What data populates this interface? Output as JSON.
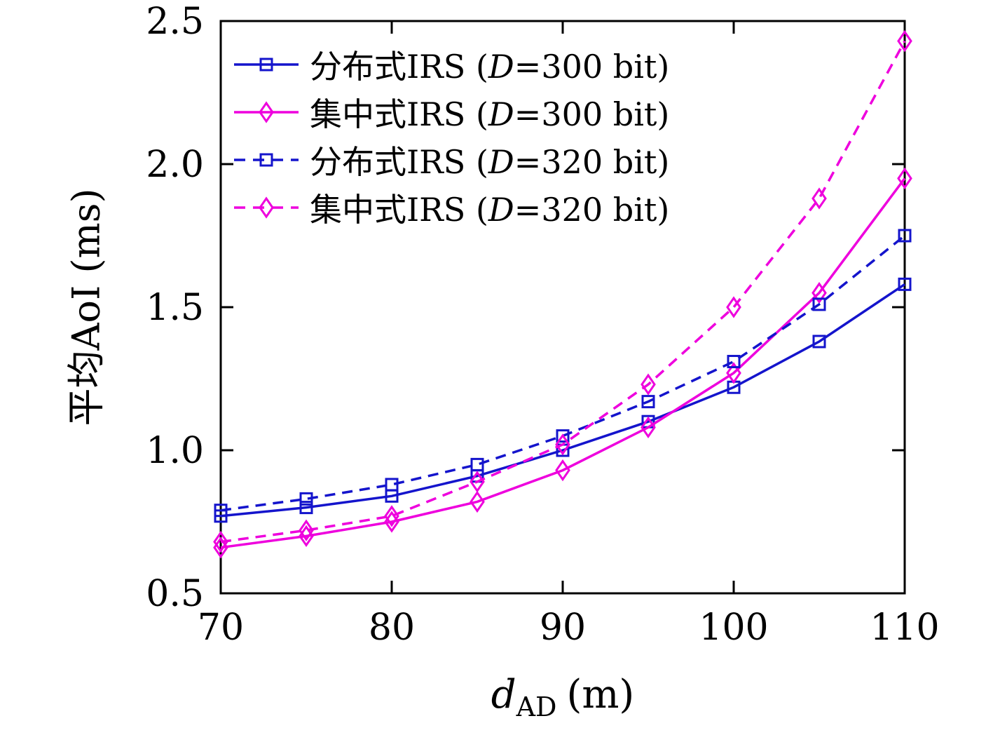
{
  "chart_data": {
    "type": "line",
    "title": "",
    "ylabel": "平均AoI (ms)",
    "xlabel": {
      "var": "d",
      "sub": "AD",
      "unit": "(m)"
    },
    "x": [
      70,
      75,
      80,
      85,
      90,
      95,
      100,
      105,
      110
    ],
    "xlim": [
      70,
      110
    ],
    "ylim": [
      0.5,
      2.5
    ],
    "xticks": [
      "70",
      "80",
      "90",
      "100",
      "110"
    ],
    "xtick_values": [
      70,
      80,
      90,
      100,
      110
    ],
    "yticks": [
      "0.5",
      "1.0",
      "1.5",
      "2.0",
      "2.5"
    ],
    "ytick_values": [
      0.5,
      1.0,
      1.5,
      2.0,
      2.5
    ],
    "grid": false,
    "legend_position": "top-left",
    "colors": {
      "blue": "#1414cc",
      "magenta": "#ee00dd",
      "axis": "#000000"
    },
    "series": [
      {
        "name_prefix": "分布式IRS (",
        "name_var": "D",
        "name_suffix": "=300 bit)",
        "color": "#1414cc",
        "dash": "solid",
        "marker": "square",
        "values": [
          0.77,
          0.8,
          0.84,
          0.91,
          1.0,
          1.1,
          1.22,
          1.38,
          1.58
        ]
      },
      {
        "name_prefix": "集中式IRS (",
        "name_var": "D",
        "name_suffix": "=300 bit)",
        "color": "#ee00dd",
        "dash": "solid",
        "marker": "diamond",
        "values": [
          0.66,
          0.7,
          0.75,
          0.82,
          0.93,
          1.08,
          1.27,
          1.55,
          1.95
        ]
      },
      {
        "name_prefix": "分布式IRS (",
        "name_var": "D",
        "name_suffix": "=320 bit)",
        "color": "#1414cc",
        "dash": "dashed",
        "marker": "square",
        "values": [
          0.79,
          0.83,
          0.88,
          0.95,
          1.05,
          1.17,
          1.31,
          1.51,
          1.75
        ]
      },
      {
        "name_prefix": "集中式IRS (",
        "name_var": "D",
        "name_suffix": "=320 bit)",
        "color": "#ee00dd",
        "dash": "dashed",
        "marker": "diamond",
        "values": [
          0.68,
          0.72,
          0.77,
          0.89,
          1.02,
          1.23,
          1.5,
          1.88,
          2.43
        ]
      }
    ]
  }
}
